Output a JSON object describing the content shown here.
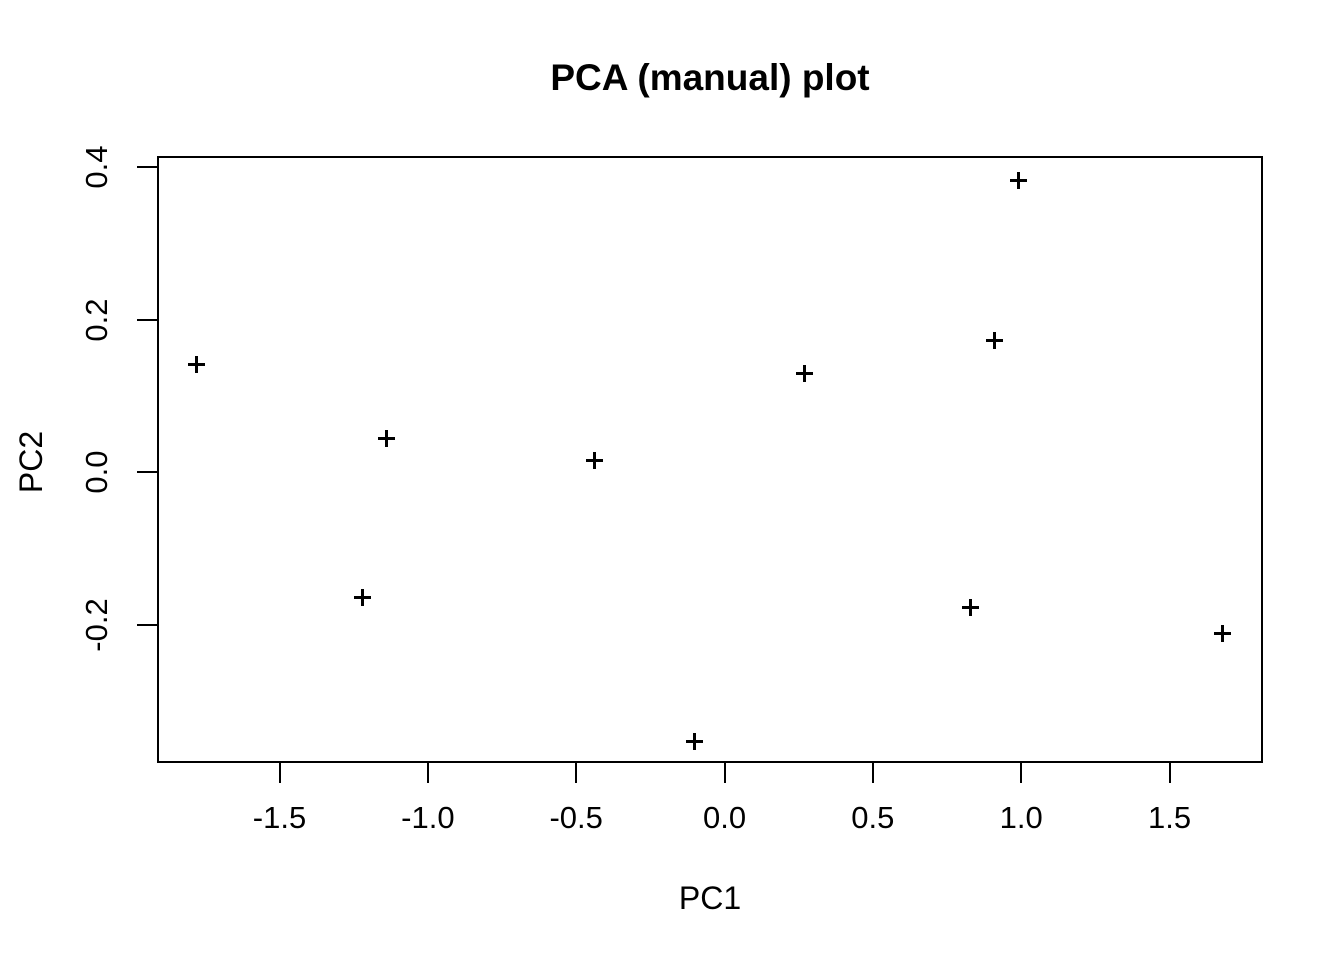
{
  "colors": {
    "background": "#ffffff",
    "foreground": "#000000"
  },
  "chart_data": {
    "type": "scatter",
    "title": "PCA (manual) plot",
    "xlabel": "PC1",
    "ylabel": "PC2",
    "marker_symbol": "plus",
    "grid": false,
    "legend": false,
    "xlim": [
      -1.913,
      1.815
    ],
    "ylim": [
      -0.38,
      0.414
    ],
    "x_ticks": [
      {
        "value": -1.5,
        "label": "-1.5"
      },
      {
        "value": -1.0,
        "label": "-1.0"
      },
      {
        "value": -0.5,
        "label": "-0.5"
      },
      {
        "value": 0.0,
        "label": "0.0"
      },
      {
        "value": 0.5,
        "label": "0.5"
      },
      {
        "value": 1.0,
        "label": "1.0"
      },
      {
        "value": 1.5,
        "label": "1.5"
      }
    ],
    "y_ticks": [
      {
        "value": -0.2,
        "label": "-0.2"
      },
      {
        "value": 0.0,
        "label": "0.0"
      },
      {
        "value": 0.2,
        "label": "0.2"
      },
      {
        "value": 0.4,
        "label": "0.4"
      }
    ],
    "points": [
      {
        "x": -1.78,
        "y": 0.141
      },
      {
        "x": -1.22,
        "y": -0.164
      },
      {
        "x": -1.14,
        "y": 0.044
      },
      {
        "x": -0.44,
        "y": 0.016
      },
      {
        "x": -0.1,
        "y": -0.352
      },
      {
        "x": 0.27,
        "y": 0.13
      },
      {
        "x": 0.83,
        "y": -0.177
      },
      {
        "x": 0.91,
        "y": 0.173
      },
      {
        "x": 0.99,
        "y": 0.382
      },
      {
        "x": 1.68,
        "y": -0.211
      }
    ]
  }
}
